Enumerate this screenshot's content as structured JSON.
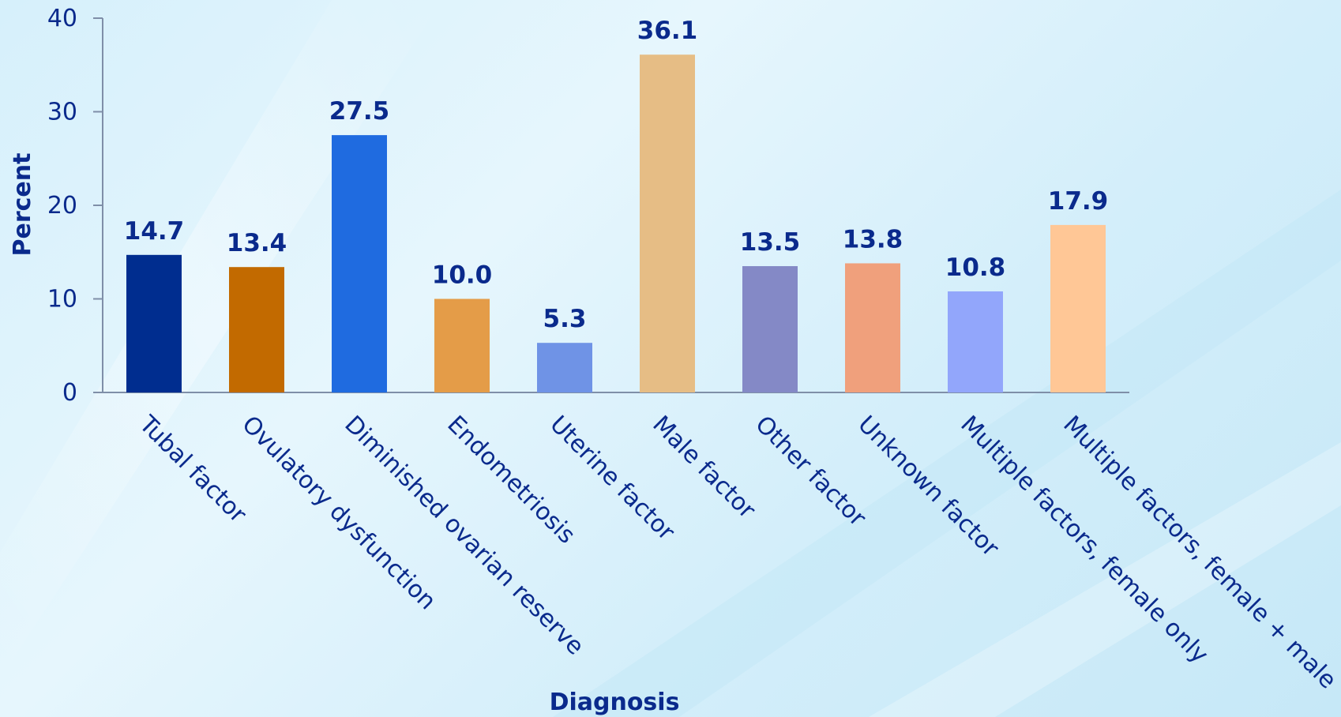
{
  "chart_data": {
    "type": "bar",
    "categories": [
      "Tubal factor",
      "Ovulatory dysfunction",
      "Diminished ovarian reserve",
      "Endometriosis",
      "Uterine factor",
      "Male factor",
      "Other factor",
      "Unknown factor",
      "Multiple factors, female only",
      "Multiple factors, female + male"
    ],
    "values": [
      14.7,
      13.4,
      27.5,
      10.0,
      5.3,
      36.1,
      13.5,
      13.8,
      10.8,
      17.9
    ],
    "value_labels": [
      "14.7",
      "13.4",
      "27.5",
      "10.0",
      "5.3",
      "36.1",
      "13.5",
      "13.8",
      "10.8",
      "17.9"
    ],
    "colors": [
      "#002d8f",
      "#c26a00",
      "#1f6be0",
      "#e49c48",
      "#6f93e6",
      "#e6bd85",
      "#8489c6",
      "#f0a07c",
      "#92a6fb",
      "#ffc796"
    ],
    "xlabel": "Diagnosis",
    "ylabel": "Percent",
    "ylim": [
      0,
      40
    ],
    "yticks": [
      0,
      10,
      20,
      30,
      40
    ],
    "grid": false,
    "legend": "none"
  }
}
